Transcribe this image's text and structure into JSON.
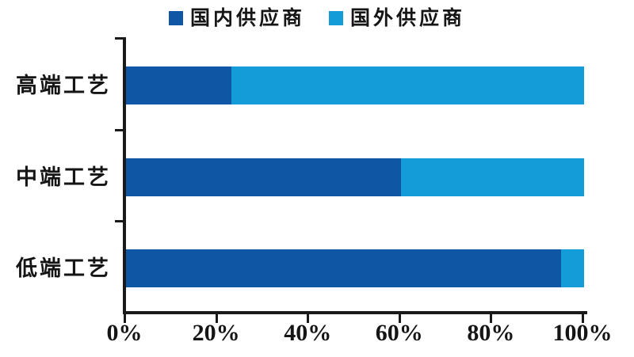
{
  "chart_data": {
    "type": "bar",
    "orientation": "horizontal",
    "stacked": true,
    "title": "",
    "categories": [
      "高端工艺",
      "中端工艺",
      "低端工艺"
    ],
    "series": [
      {
        "name": "国内供应商",
        "color": "#0F57A4",
        "values": [
          23,
          60,
          95
        ]
      },
      {
        "name": "国外供应商",
        "color": "#149CD9",
        "values": [
          77,
          40,
          5
        ]
      }
    ],
    "unit": "%",
    "xlim": [
      0,
      100
    ],
    "x_tick_labels": [
      "0%",
      "20%",
      "40%",
      "60%",
      "80%",
      "100%"
    ],
    "legend_position": "top",
    "grid": false,
    "axis_color": "#1A1A1A",
    "text_color": "#151515",
    "background_color": "#FFFFFF"
  }
}
